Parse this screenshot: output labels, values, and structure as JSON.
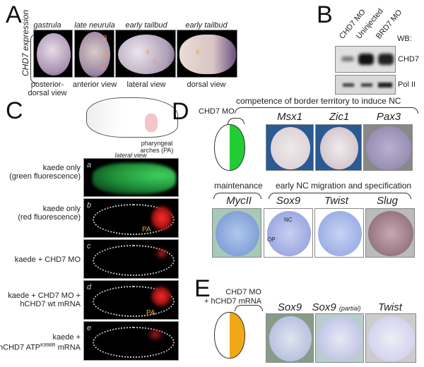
{
  "panel_a": {
    "letter": "A",
    "side_label": "CHD7 expression",
    "stages": [
      "gastrula",
      "late neurula",
      "early tailbud",
      "early tailbud"
    ],
    "views": [
      "posterior-",
      "dorsal view",
      "anterior view",
      "lateral view",
      "dorsal view"
    ],
    "markers": [
      "3",
      "2",
      "1",
      "4",
      "5",
      "6"
    ]
  },
  "panel_b": {
    "letter": "B",
    "lanes": [
      "CHD7 MO",
      "Uninjected",
      "BRD7 MO"
    ],
    "wb_label": "WB:",
    "blots": [
      "CHD7",
      "Pol II"
    ]
  },
  "panel_c": {
    "letter": "C",
    "diagram_label_1": "pharyngeal",
    "diagram_label_2": "arches (PA)",
    "view_label": "lateral view",
    "rows": [
      {
        "letter": "a",
        "label_1": "kaede only",
        "label_2": "(green fluorescence)"
      },
      {
        "letter": "b",
        "label_1": "kaede only",
        "label_2": "(red fluorescence)",
        "annotation": "PA"
      },
      {
        "letter": "c",
        "label_1": "kaede + CHD7 MO",
        "label_2": ""
      },
      {
        "letter": "d",
        "label_1": "kaede + CHD7 MO +",
        "label_2": "hCHD7 wt mRNA",
        "annotation": "PA"
      },
      {
        "letter": "e",
        "label_1": "kaede +",
        "label_2": "hCHD7 ATP",
        "superscript": "K998R",
        "label_3": " mRNA"
      }
    ]
  },
  "panel_d": {
    "letter": "D",
    "schematic_label": "CHD7 MO",
    "group1": "competence of border territory to induce NC",
    "genes1": [
      "Msx1",
      "Zic1",
      "Pax3"
    ],
    "group2": "maintenance",
    "genes2": [
      "MycII"
    ],
    "group3": "early NC migration and specification",
    "genes3": [
      "Sox9",
      "Twist",
      "Slug"
    ],
    "annotations": [
      "NC",
      "OP"
    ],
    "colors": {
      "mo_side": "#22cc33"
    }
  },
  "panel_e": {
    "letter": "E",
    "schematic_label_1": "CHD7 MO",
    "schematic_label_2": "+ hCHD7 mRNA",
    "genes": [
      "Sox9",
      "Sox9",
      "Twist"
    ],
    "partial_note": "(partial)",
    "colors": {
      "rescue_side": "#f0a818"
    }
  }
}
